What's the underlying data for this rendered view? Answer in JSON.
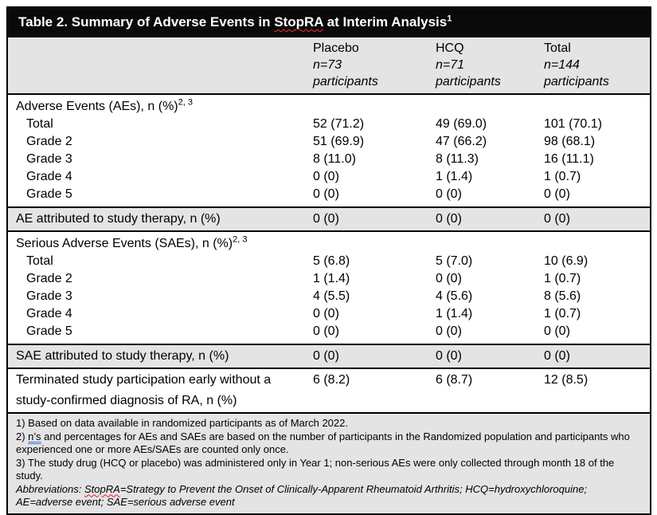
{
  "title": {
    "pre": "Table 2. Summary of Adverse Events in ",
    "flagged": "StopRA",
    "post": " at Interim Analysis",
    "sup": "1"
  },
  "columns": [
    {
      "label": "Placebo",
      "n": "n=73",
      "unit": "participants"
    },
    {
      "label": "HCQ",
      "n": "n=71",
      "unit": "participants"
    },
    {
      "label": "Total",
      "n": "n=144",
      "unit": "participants"
    }
  ],
  "ae_section": {
    "header": "Adverse Events (AEs), n (%)",
    "header_sup": "2, 3",
    "rows": [
      {
        "label": "Total",
        "values": [
          "52 (71.2)",
          "49 (69.0)",
          "101 (70.1)"
        ]
      },
      {
        "label": "Grade 2",
        "values": [
          "51 (69.9)",
          "47 (66.2)",
          "98 (68.1)"
        ]
      },
      {
        "label": "Grade 3",
        "values": [
          "8 (11.0)",
          "8 (11.3)",
          "16 (11.1)"
        ]
      },
      {
        "label": "Grade 4",
        "values": [
          "0 (0)",
          "1 (1.4)",
          "1 (0.7)"
        ]
      },
      {
        "label": "Grade 5",
        "values": [
          "0 (0)",
          "0 (0)",
          "0 (0)"
        ]
      }
    ]
  },
  "ae_attributed": {
    "label": "AE attributed to study therapy, n (%)",
    "values": [
      "0 (0)",
      "0 (0)",
      "0 (0)"
    ]
  },
  "sae_section": {
    "header": "Serious Adverse Events (SAEs), n (%)",
    "header_sup": "2, 3",
    "rows": [
      {
        "label": "Total",
        "values": [
          "5 (6.8)",
          "5 (7.0)",
          "10 (6.9)"
        ]
      },
      {
        "label": "Grade 2",
        "values": [
          "1 (1.4)",
          "0 (0)",
          "1 (0.7)"
        ]
      },
      {
        "label": "Grade 3",
        "values": [
          "4 (5.5)",
          "4 (5.6)",
          "8 (5.6)"
        ]
      },
      {
        "label": "Grade 4",
        "values": [
          "0 (0)",
          "1 (1.4)",
          "1 (0.7)"
        ]
      },
      {
        "label": "Grade 5",
        "values": [
          "0 (0)",
          "0 (0)",
          "0 (0)"
        ]
      }
    ]
  },
  "sae_attributed": {
    "label": "SAE attributed to study therapy, n (%)",
    "values": [
      "0 (0)",
      "0 (0)",
      "0 (0)"
    ]
  },
  "terminated": {
    "label": "Terminated study participation early without a study-confirmed diagnosis of RA, n (%)",
    "values": [
      "6 (8.2)",
      "6 (8.7)",
      "12 (8.5)"
    ]
  },
  "footnotes": {
    "f1": "1) Based on data available in randomized participants as of March 2022.",
    "f2_pre": "2) ",
    "f2_flagged": "n’s",
    "f2_post": " and percentages for AEs and SAEs are based on the number of participants in the Randomized population and participants who experienced one or more AEs/SAEs are counted only once.",
    "f3": "3) The study drug (HCQ or placebo) was administered only in Year 1; non-serious AEs were only collected through month 18 of the study.",
    "abbr_pre": "Abbreviations: ",
    "abbr_flagged": "StopRA",
    "abbr_post": "=Strategy to Prevent the Onset of Clinically-Apparent Rheumatoid Arthritis; HCQ=hydroxychloroquine; AE=adverse event; SAE=serious adverse event"
  },
  "colors": {
    "title_bg": "#0a0a0a",
    "band_bg": "#e4e4e4",
    "text": "#000000",
    "spellcheck_red": "#e02020",
    "grammar_blue": "#3b7bd4"
  }
}
